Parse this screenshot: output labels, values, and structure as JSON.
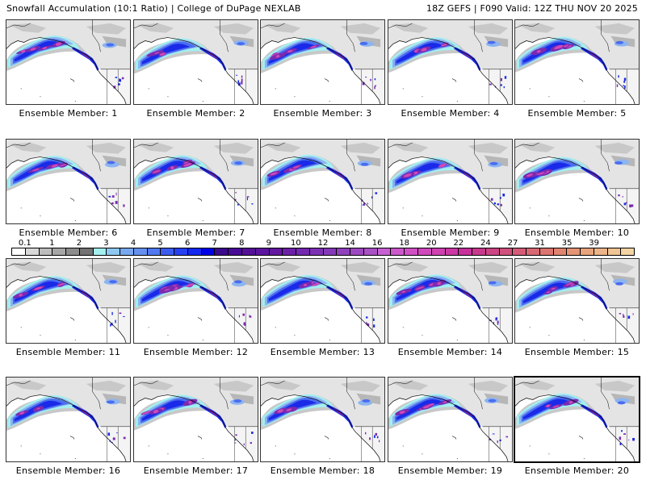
{
  "header": {
    "left_title": "Snowfall Accumulation (10:1 Ratio) | College of DuPage NEXLAB",
    "right_title": "18Z GEFS | F090 Valid: 12Z THU NOV 20 2025"
  },
  "panels": [
    {
      "label": "Ensemble Member: 1",
      "member": 1
    },
    {
      "label": "Ensemble Member: 2",
      "member": 2
    },
    {
      "label": "Ensemble Member: 3",
      "member": 3
    },
    {
      "label": "Ensemble Member: 4",
      "member": 4
    },
    {
      "label": "Ensemble Member: 5",
      "member": 5
    },
    {
      "label": "Ensemble Member: 6",
      "member": 6
    },
    {
      "label": "Ensemble Member: 7",
      "member": 7
    },
    {
      "label": "Ensemble Member: 8",
      "member": 8
    },
    {
      "label": "Ensemble Member: 9",
      "member": 9
    },
    {
      "label": "Ensemble Member: 10",
      "member": 10
    },
    {
      "label": "Ensemble Member: 11",
      "member": 11
    },
    {
      "label": "Ensemble Member: 12",
      "member": 12
    },
    {
      "label": "Ensemble Member: 13",
      "member": 13
    },
    {
      "label": "Ensemble Member: 14",
      "member": 14
    },
    {
      "label": "Ensemble Member: 15",
      "member": 15
    },
    {
      "label": "Ensemble Member: 16",
      "member": 16
    },
    {
      "label": "Ensemble Member: 17",
      "member": 17
    },
    {
      "label": "Ensemble Member: 18",
      "member": 18
    },
    {
      "label": "Ensemble Member: 19",
      "member": 19
    },
    {
      "label": "Ensemble Member: 20",
      "member": 20
    }
  ],
  "colorbar": {
    "units_hint": "inches",
    "tick_labels": [
      "0.1",
      "1",
      "2",
      "3",
      "4",
      "5",
      "6",
      "7",
      "8",
      "9",
      "10",
      "12",
      "14",
      "16",
      "18",
      "20",
      "22",
      "24",
      "27",
      "31",
      "35",
      "39"
    ],
    "colors": [
      "#ffffff",
      "#d8d8d8",
      "#bdbdbd",
      "#a6a6a6",
      "#8c8c8c",
      "#737373",
      "#a3f0f0",
      "#8cc8f0",
      "#78a8f0",
      "#6690f0",
      "#5078f0",
      "#3c5cf0",
      "#2840f0",
      "#1428f0",
      "#0000e6",
      "#3c0a8c",
      "#480c96",
      "#541096",
      "#5c14a0",
      "#6418a0",
      "#6c20a8",
      "#7428b0",
      "#7c30b4",
      "#8438b8",
      "#9040bc",
      "#9c48c0",
      "#a850c4",
      "#c860d4",
      "#cc58cc",
      "#d050c4",
      "#d048bc",
      "#d040b0",
      "#cc38a4",
      "#c8309c",
      "#c8388c",
      "#cc4484",
      "#d0507c",
      "#d45c78",
      "#d86874",
      "#dc7470",
      "#e08470",
      "#e49474",
      "#e8a47c",
      "#ecb488",
      "#f0c494",
      "#f4d4a4"
    ]
  },
  "map_colors": {
    "gray_light": "#e4e4e4",
    "gray_mid": "#c8c8c8",
    "gray_dark": "#9a9a9a",
    "cyan": "#a3f0f0",
    "light_blue": "#8cb4f0",
    "blue": "#4a6cf0",
    "deep_blue": "#1a2ae8",
    "purple": "#7a2ab0",
    "magenta": "#d048b8",
    "pink": "#e080c8",
    "border": "#000000"
  },
  "selected_member": 20
}
